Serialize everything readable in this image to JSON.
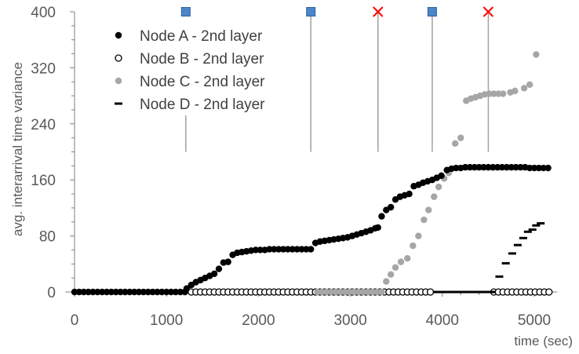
{
  "chart_data": {
    "type": "scatter",
    "xlabel": "time (sec)",
    "ylabel": "avg. interarrival time variance",
    "xlim": [
      -100,
      5250
    ],
    "ylim": [
      0,
      400
    ],
    "xticks": [
      0,
      1000,
      2000,
      3000,
      4000,
      5000
    ],
    "yticks": [
      0,
      80,
      160,
      240,
      320,
      400
    ],
    "grid": false,
    "legend_position": "top-left",
    "colors": {
      "node_a": "#000000",
      "node_b": "#000000",
      "node_c": "#a6a6a6",
      "node_d": "#000000",
      "axis": "#808080",
      "event_square": "#4a86c8",
      "event_x": "#ff0000"
    },
    "events": [
      {
        "x": 1210,
        "marker": "square",
        "line_bottom": 200,
        "line_top": 252
      },
      {
        "x": 2570,
        "marker": "square",
        "line_bottom": 200,
        "line_top": 400
      },
      {
        "x": 3300,
        "marker": "x",
        "line_bottom": 200,
        "line_top": 400
      },
      {
        "x": 3890,
        "marker": "square",
        "line_bottom": 200,
        "line_top": 400
      },
      {
        "x": 4500,
        "marker": "x",
        "line_bottom": 200,
        "line_top": 400
      }
    ],
    "series": [
      {
        "name": "Node A - 2nd layer",
        "marker": "filled-circle",
        "x": [
          0,
          50,
          100,
          150,
          200,
          250,
          300,
          350,
          400,
          450,
          500,
          550,
          600,
          650,
          700,
          750,
          800,
          850,
          900,
          950,
          1000,
          1050,
          1100,
          1150,
          1200,
          1220,
          1270,
          1320,
          1370,
          1420,
          1470,
          1520,
          1570,
          1620,
          1670,
          1720,
          1770,
          1820,
          1870,
          1920,
          1970,
          2020,
          2070,
          2120,
          2170,
          2220,
          2270,
          2320,
          2370,
          2420,
          2470,
          2520,
          2570,
          2620,
          2670,
          2720,
          2770,
          2820,
          2870,
          2920,
          2970,
          3020,
          3070,
          3120,
          3170,
          3220,
          3270,
          3300,
          3340,
          3390,
          3440,
          3490,
          3540,
          3590,
          3640,
          3690,
          3740,
          3790,
          3840,
          3890,
          3940,
          3990,
          4050,
          4100,
          4150,
          4200,
          4250,
          4300,
          4350,
          4400,
          4450,
          4500,
          4550,
          4600,
          4650,
          4700,
          4750,
          4800,
          4850,
          4900,
          4950,
          5000,
          5050,
          5100,
          5150
        ],
        "y": [
          0,
          0,
          0,
          0,
          0,
          0,
          0,
          0,
          0,
          0,
          0,
          0,
          0,
          0,
          0,
          0,
          0,
          0,
          0,
          0,
          0,
          0,
          0,
          0,
          0,
          5,
          10,
          14,
          17,
          20,
          23,
          26,
          33,
          42,
          43,
          53,
          56,
          57,
          58,
          59,
          60,
          60,
          60,
          61,
          61,
          61,
          61,
          61,
          61,
          61,
          61,
          61,
          61,
          70,
          72,
          73,
          74,
          75,
          76,
          77,
          78,
          80,
          82,
          84,
          86,
          88,
          91,
          92,
          108,
          117,
          121,
          132,
          136,
          138,
          140,
          151,
          153,
          156,
          158,
          160,
          163,
          166,
          174,
          176,
          177,
          177,
          178,
          178,
          178,
          178,
          178,
          178,
          178,
          178,
          178,
          178,
          178,
          178,
          178,
          178,
          177,
          177,
          177,
          177,
          177
        ]
      },
      {
        "name": "Node B - 2nd layer",
        "marker": "open-circle",
        "x": [
          1270,
          1320,
          1370,
          1420,
          1470,
          1520,
          1570,
          1620,
          1670,
          1720,
          1770,
          1820,
          1870,
          1920,
          1970,
          2020,
          2070,
          2120,
          2170,
          2220,
          2270,
          2320,
          2370,
          2420,
          2470,
          2520,
          2570,
          2620,
          2670,
          2720,
          2770,
          2820,
          2870,
          2920,
          2970,
          3020,
          3070,
          3120,
          3170,
          3220,
          3270,
          3320,
          3370,
          3420,
          3470,
          3520,
          3570,
          3620,
          3670,
          3720,
          3770,
          3820,
          3870,
          4560,
          4610,
          4660,
          4710,
          4760,
          4810,
          4860,
          4910,
          4960,
          5010,
          5060,
          5110,
          5160
        ],
        "y": [
          0,
          0,
          0,
          0,
          0,
          0,
          0,
          0,
          0,
          0,
          0,
          0,
          0,
          0,
          0,
          0,
          0,
          0,
          0,
          0,
          0,
          0,
          0,
          0,
          0,
          0,
          0,
          0,
          0,
          0,
          0,
          0,
          0,
          0,
          0,
          0,
          0,
          0,
          0,
          0,
          0,
          0,
          0,
          0,
          0,
          0,
          0,
          0,
          0,
          0,
          0,
          0,
          0,
          0,
          0,
          0,
          0,
          0,
          0,
          0,
          0,
          0,
          0,
          0,
          0,
          0
        ]
      },
      {
        "name": "Node C - 2nd layer",
        "marker": "filled-circle",
        "x": [
          2640,
          2690,
          2740,
          2790,
          2840,
          2890,
          2940,
          2990,
          3040,
          3090,
          3140,
          3190,
          3240,
          3290,
          3340,
          3390,
          3440,
          3490,
          3550,
          3620,
          3680,
          3740,
          3800,
          3850,
          3910,
          3960,
          4020,
          4070,
          4140,
          4200,
          4260,
          4310,
          4360,
          4410,
          4460,
          4510,
          4560,
          4610,
          4660,
          4740,
          4790,
          4890,
          4950,
          5020
        ],
        "y": [
          0,
          0,
          0,
          0,
          0,
          0,
          0,
          0,
          0,
          0,
          0,
          0,
          0,
          0,
          0,
          15,
          25,
          35,
          43,
          48,
          66,
          80,
          103,
          117,
          136,
          150,
          162,
          170,
          212,
          220,
          273,
          276,
          278,
          280,
          282,
          283,
          283,
          283,
          283,
          285,
          287,
          291,
          296,
          339
        ]
      },
      {
        "name": "Node D - 2nd layer",
        "marker": "dash",
        "x": [
          3940,
          3990,
          4040,
          4090,
          4140,
          4190,
          4240,
          4290,
          4340,
          4390,
          4440,
          4490,
          4540,
          4620,
          4690,
          4760,
          4820,
          4880,
          4930,
          4980,
          5020,
          5070
        ],
        "y": [
          0,
          0,
          0,
          0,
          0,
          0,
          0,
          0,
          0,
          0,
          0,
          0,
          0,
          22,
          41,
          55,
          67,
          77,
          86,
          89,
          95,
          98
        ]
      }
    ]
  }
}
